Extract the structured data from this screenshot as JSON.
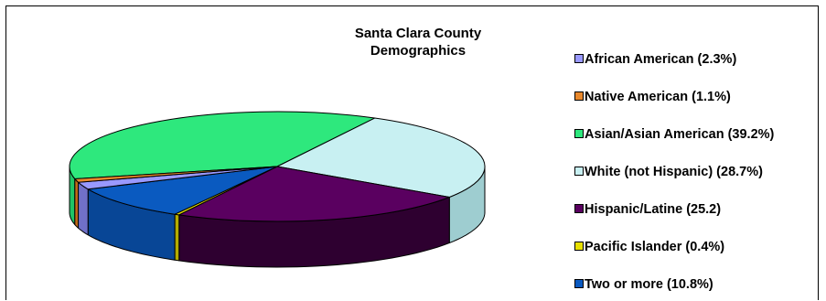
{
  "chart_data": {
    "type": "pie",
    "title": [
      "Santa Clara County",
      "Demographics"
    ],
    "legend_position": "right",
    "slices": [
      {
        "label": "African American (2.3%)",
        "value": 2.3,
        "color": "#9999ff",
        "side_color": "#7070c8"
      },
      {
        "label": "Native American (1.1%)",
        "value": 1.1,
        "color": "#e8882c",
        "side_color": "#c06a18"
      },
      {
        "label": "Asian/Asian American (39.2%)",
        "value": 39.2,
        "color": "#2ee87d",
        "side_color": "#20c466"
      },
      {
        "label": "White (not Hispanic) (28.7%)",
        "value": 28.7,
        "color": "#c8f0f2",
        "side_color": "#9ecdd0"
      },
      {
        "label": "Hispanic/Latine (25.2)",
        "value": 25.2,
        "color": "#5a0060",
        "side_color": "#2e0030"
      },
      {
        "label": "Pacific Islander (0.4%)",
        "value": 0.4,
        "color": "#e8e000",
        "side_color": "#b4ac00"
      },
      {
        "label": "Two or more (10.8%)",
        "value": 10.8,
        "color": "#0a5ac0",
        "side_color": "#084696"
      }
    ]
  }
}
